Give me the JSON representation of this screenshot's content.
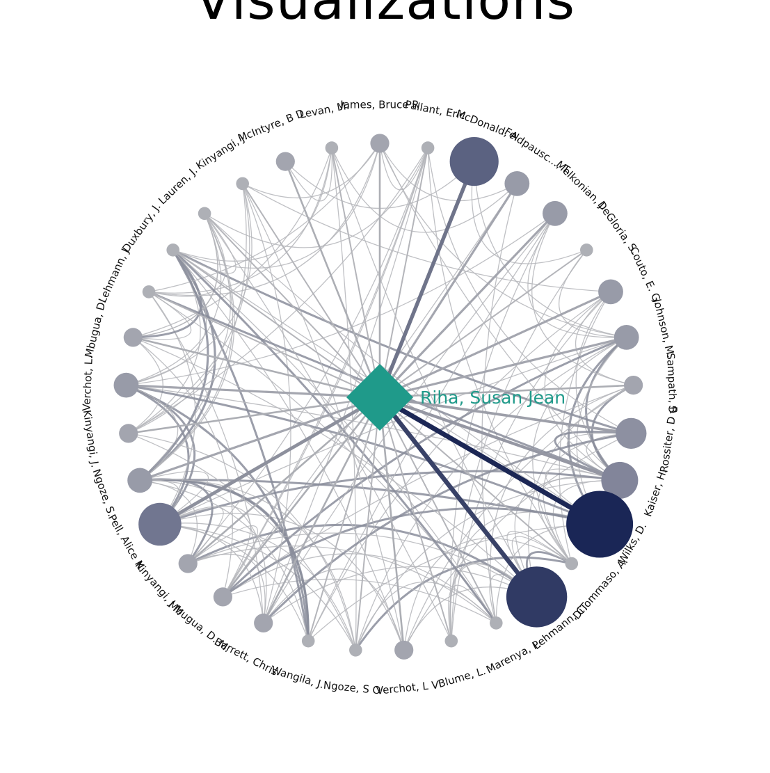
{
  "page": {
    "title": "Visualizations"
  },
  "colors": {
    "center": "#1f9a8a",
    "edge_light": "#b4b5ba",
    "edge_mid": "#8a8d9b",
    "edge_dark": "#1c2755",
    "node_light": "#aeb0b6",
    "node_mid": "#7c8097",
    "node_dark": "#1a2656"
  },
  "graph": {
    "center": {
      "name": "Riha, Susan Jean",
      "shape": "diamond"
    },
    "authors": [
      {
        "name": "James, Bruce R",
        "weight": 2
      },
      {
        "name": "Pallant, Eric",
        "weight": 1
      },
      {
        "name": "McDonald, A.",
        "weight": 7
      },
      {
        "name": "Feldpausc..., T.",
        "weight": 3
      },
      {
        "name": "Melkonian, J.",
        "weight": 3
      },
      {
        "name": "DeGloria, S.",
        "weight": 1
      },
      {
        "name": "Couto, E. G.",
        "weight": 3
      },
      {
        "name": "Johnson, M.",
        "weight": 3
      },
      {
        "name": "Sampath, R",
        "weight": 2
      },
      {
        "name": "Rossiter, D G",
        "weight": 4
      },
      {
        "name": "Kaiser, H.",
        "weight": 5
      },
      {
        "name": "Wilks, D.",
        "weight": 10
      },
      {
        "name": "DiTommaso, A.",
        "weight": 1
      },
      {
        "name": "Lehmann, C.",
        "weight": 9
      },
      {
        "name": "Marenya, P.",
        "weight": 1
      },
      {
        "name": "Blume, L.",
        "weight": 1
      },
      {
        "name": "Verchot, L V",
        "weight": 2
      },
      {
        "name": "Ngoze, S O",
        "weight": 1
      },
      {
        "name": "Wangila, J.",
        "weight": 1
      },
      {
        "name": "Barrett, Chris",
        "weight": 2
      },
      {
        "name": "Mbugua, D. M.",
        "weight": 2
      },
      {
        "name": "Kinyangi, J M",
        "weight": 2
      },
      {
        "name": "Pell, Alice N.",
        "weight": 6
      },
      {
        "name": "Ngoze, S.",
        "weight": 3
      },
      {
        "name": "Kinyangi, J.",
        "weight": 2
      },
      {
        "name": "Verchot, L.",
        "weight": 3
      },
      {
        "name": "Mbugua, D.",
        "weight": 2
      },
      {
        "name": "Lehmann, J",
        "weight": 1
      },
      {
        "name": "Duxbury, J.",
        "weight": 1
      },
      {
        "name": "Lauren, J.",
        "weight": 1
      },
      {
        "name": "Kinyangi, J.",
        "weight": 1
      },
      {
        "name": "McIntyre, B D",
        "weight": 2
      },
      {
        "name": "Levan, M.",
        "weight": 1
      }
    ]
  }
}
